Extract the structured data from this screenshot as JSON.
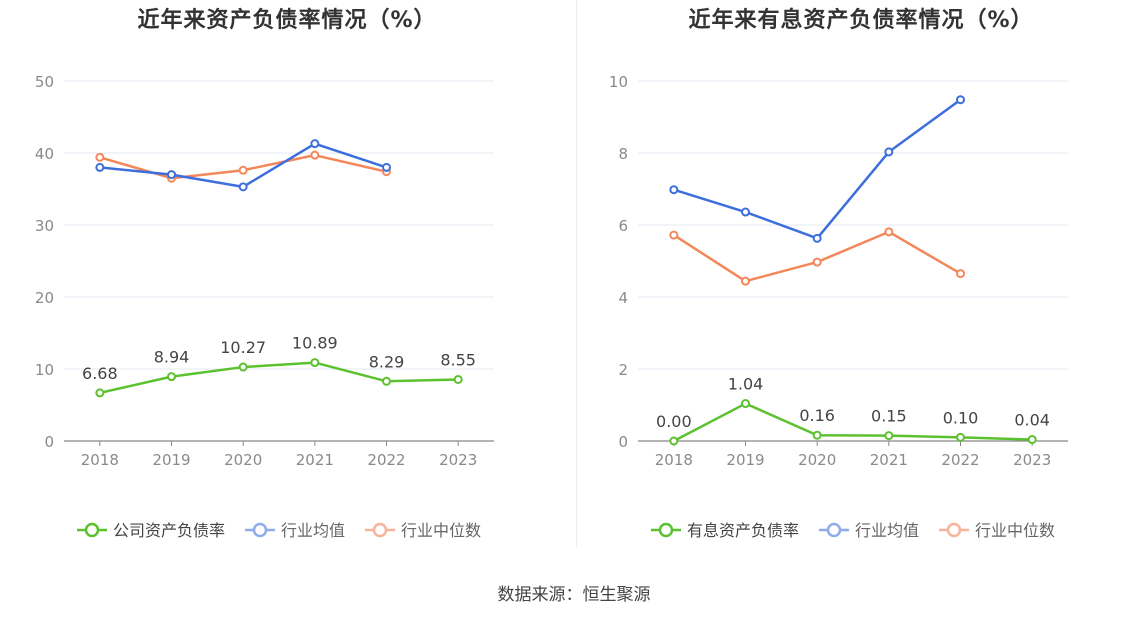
{
  "charts": [
    {
      "title": "近年来资产负债率情况（%）",
      "chart_data": {
        "type": "line",
        "title": "近年来资产负债率情况（%）",
        "categories": [
          "2018",
          "2019",
          "2020",
          "2021",
          "2022",
          "2023"
        ],
        "ylim": [
          0,
          50
        ],
        "yticks": [
          0,
          10,
          20,
          30,
          40,
          50
        ],
        "grid": true,
        "legend": "bottom",
        "series": [
          {
            "name": "公司资产负债率",
            "color": "#5cc12f",
            "values": [
              6.68,
              8.94,
              10.27,
              10.89,
              8.29,
              8.55
            ],
            "labels": [
              "6.68",
              "8.94",
              "10.27",
              "10.89",
              "8.29",
              "8.55"
            ],
            "show_labels": true
          },
          {
            "name": "行业均值",
            "color": "#3d6fdc",
            "values": [
              38.0,
              37.0,
              35.3,
              41.3,
              38.0,
              null
            ],
            "show_labels": false
          },
          {
            "name": "行业中位数",
            "color": "#f4875a",
            "values": [
              39.4,
              36.5,
              37.6,
              39.7,
              37.4,
              null
            ],
            "show_labels": false
          }
        ]
      }
    },
    {
      "title": "近年来有息资产负债率情况（%）",
      "chart_data": {
        "type": "line",
        "title": "近年来有息资产负债率情况（%）",
        "categories": [
          "2018",
          "2019",
          "2020",
          "2021",
          "2022",
          "2023"
        ],
        "ylim": [
          0,
          10
        ],
        "yticks": [
          0,
          2,
          4,
          6,
          8,
          10
        ],
        "grid": true,
        "legend": "bottom",
        "series": [
          {
            "name": "有息资产负债率",
            "color": "#5cc12f",
            "values": [
              0.0,
              1.04,
              0.16,
              0.15,
              0.1,
              0.04
            ],
            "labels": [
              "0.00",
              "1.04",
              "0.16",
              "0.15",
              "0.10",
              "0.04"
            ],
            "show_labels": true
          },
          {
            "name": "行业均值",
            "color": "#3d6fdc",
            "values": [
              6.98,
              6.36,
              5.63,
              8.03,
              9.48,
              null
            ],
            "show_labels": false
          },
          {
            "name": "行业中位数",
            "color": "#f4875a",
            "values": [
              5.72,
              4.44,
              4.97,
              5.81,
              4.65,
              null
            ],
            "show_labels": false
          }
        ]
      }
    }
  ],
  "source": "数据来源：恒生聚源"
}
